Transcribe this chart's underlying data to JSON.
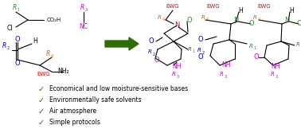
{
  "bg_color": "#ffffff",
  "bullet_items": [
    "Economical and low moisture-sensitive bases",
    "Environmentally safe solvents",
    "Air atmosphere",
    "Simple protocols"
  ],
  "green": "#2d8a2d",
  "dark_green": "#2d6e00",
  "blue": "#0000cc",
  "red": "#cc0000",
  "magenta": "#cc00cc",
  "orange": "#cc6600",
  "black": "#000000"
}
